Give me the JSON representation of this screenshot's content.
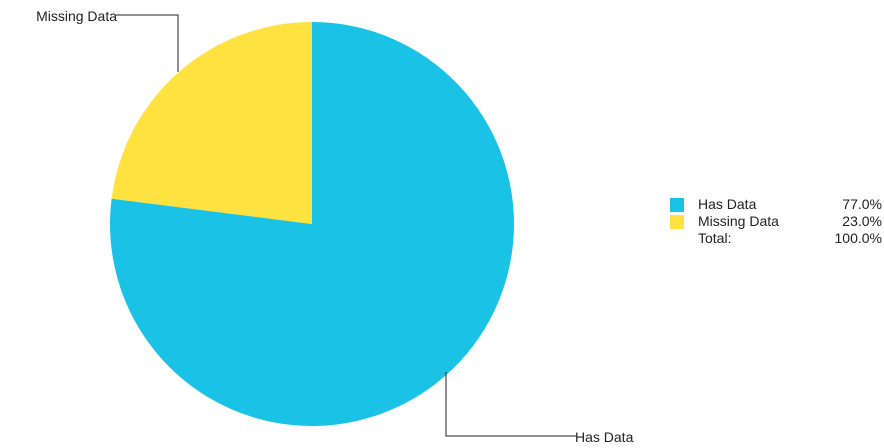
{
  "chart_data": {
    "type": "pie",
    "slices": [
      {
        "label": "Has Data",
        "value": 77.0,
        "color": "#1ac3e6"
      },
      {
        "label": "Missing Data",
        "value": 23.0,
        "color": "#ffe23f"
      }
    ],
    "start_angle": "12 o'clock, clockwise"
  },
  "legend": {
    "placement": "right",
    "items": [
      {
        "label": "Has Data",
        "value": "77.0%",
        "color": "#1ac3e6"
      },
      {
        "label": "Missing Data",
        "value": "23.0%",
        "color": "#ffe23f"
      }
    ],
    "total_label": "Total:",
    "total_value": "100.0%"
  }
}
